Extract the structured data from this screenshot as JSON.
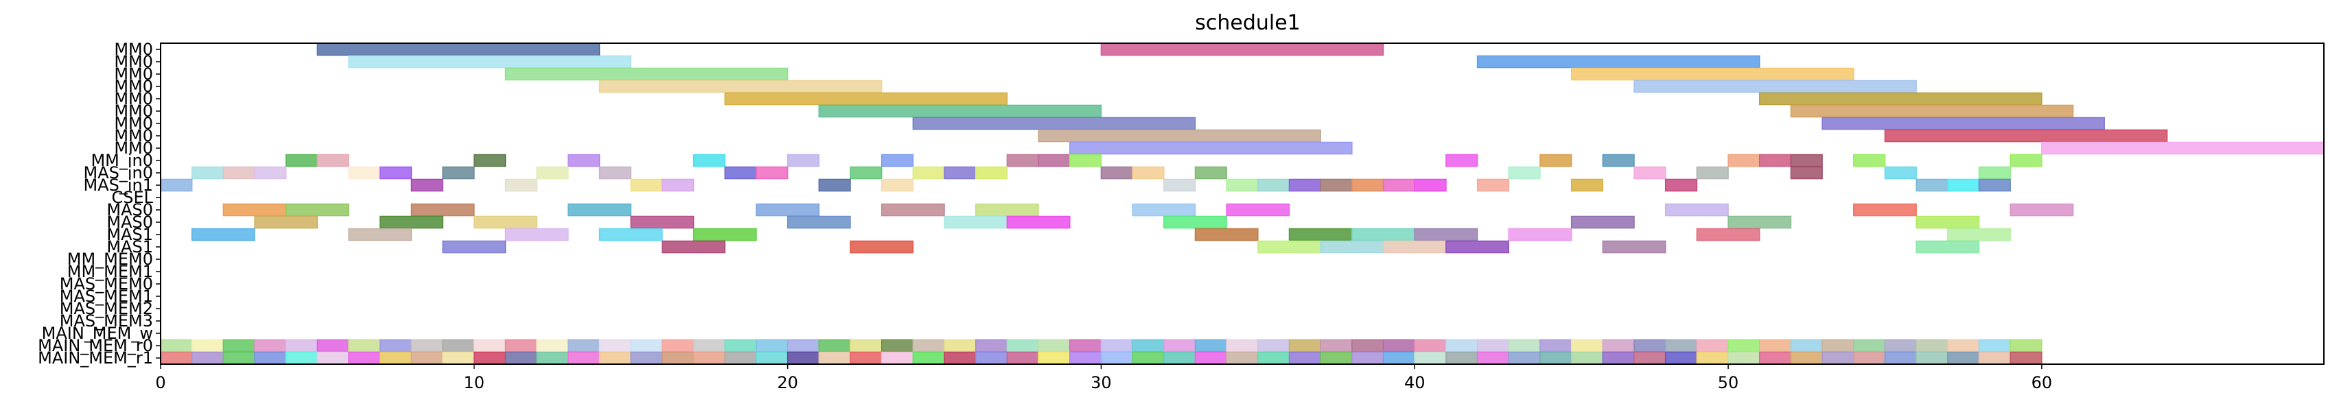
{
  "chart_data": {
    "type": "gantt",
    "title": "schedule1",
    "xlim": [
      0,
      69
    ],
    "x_ticks": [
      0,
      10,
      20,
      30,
      40,
      50,
      60
    ],
    "grid": false,
    "rows": [
      "MM0",
      "MM0",
      "MM0",
      "MM0",
      "MM0",
      "MM0",
      "MM0",
      "MM0",
      "MM0",
      "MM_in0",
      "MAS_in0",
      "MAS_in1",
      "CSEL",
      "MAS0",
      "MAS0",
      "MAS1",
      "MAS1",
      "MM_MEM0",
      "MM_MEM1",
      "MAS_MEM0",
      "MAS_MEM1",
      "MAS_MEM2",
      "MAS_MEM3",
      "MAIN_MEM_w",
      "MAIN_MEM_r0",
      "MAIN_MEM_r1"
    ],
    "tasks": [
      {
        "row": 0,
        "start": 5,
        "end": 14,
        "color": "#5470a8"
      },
      {
        "row": 0,
        "start": 30,
        "end": 39,
        "color": "#d05a92"
      },
      {
        "row": 1,
        "start": 6,
        "end": 15,
        "color": "#a8e4f0"
      },
      {
        "row": 1,
        "start": 42,
        "end": 51,
        "color": "#5b9cea"
      },
      {
        "row": 2,
        "start": 11,
        "end": 20,
        "color": "#90e090"
      },
      {
        "row": 2,
        "start": 45,
        "end": 54,
        "color": "#f5c86a"
      },
      {
        "row": 3,
        "start": 14,
        "end": 23,
        "color": "#ecd49a"
      },
      {
        "row": 3,
        "start": 47,
        "end": 56,
        "color": "#a4c4ec"
      },
      {
        "row": 4,
        "start": 18,
        "end": 27,
        "color": "#d8b040"
      },
      {
        "row": 4,
        "start": 51,
        "end": 60,
        "color": "#b8a038"
      },
      {
        "row": 5,
        "start": 21,
        "end": 30,
        "color": "#60c090"
      },
      {
        "row": 5,
        "start": 52,
        "end": 61,
        "color": "#d4a060"
      },
      {
        "row": 6,
        "start": 24,
        "end": 33,
        "color": "#7880c4"
      },
      {
        "row": 6,
        "start": 53,
        "end": 62,
        "color": "#8478d4"
      },
      {
        "row": 7,
        "start": 28,
        "end": 37,
        "color": "#c4a890"
      },
      {
        "row": 7,
        "start": 55,
        "end": 64,
        "color": "#d04a64"
      },
      {
        "row": 8,
        "start": 29,
        "end": 38,
        "color": "#9898f0"
      },
      {
        "row": 8,
        "start": 60,
        "end": 69,
        "color": "#f4a8ec"
      },
      {
        "row": 9,
        "start": 4,
        "end": 5,
        "color": "#58b858"
      },
      {
        "row": 9,
        "start": 5,
        "end": 6,
        "color": "#e4a8b4"
      },
      {
        "row": 9,
        "start": 10,
        "end": 11,
        "color": "#5a7a48"
      },
      {
        "row": 9,
        "start": 13,
        "end": 14,
        "color": "#b888ec"
      },
      {
        "row": 9,
        "start": 17,
        "end": 18,
        "color": "#48e0ec"
      },
      {
        "row": 9,
        "start": 20,
        "end": 21,
        "color": "#c0b4ec"
      },
      {
        "row": 9,
        "start": 23,
        "end": 24,
        "color": "#7c9cf0"
      },
      {
        "row": 9,
        "start": 27,
        "end": 28,
        "color": "#c07898"
      },
      {
        "row": 9,
        "start": 28,
        "end": 29,
        "color": "#b86898"
      },
      {
        "row": 9,
        "start": 29,
        "end": 30,
        "color": "#98ec60"
      },
      {
        "row": 9,
        "start": 41,
        "end": 42,
        "color": "#ec5cec"
      },
      {
        "row": 9,
        "start": 44,
        "end": 45,
        "color": "#d8a048"
      },
      {
        "row": 9,
        "start": 46,
        "end": 47,
        "color": "#5c98b8"
      },
      {
        "row": 9,
        "start": 50,
        "end": 51,
        "color": "#f0a480"
      },
      {
        "row": 9,
        "start": 51,
        "end": 52,
        "color": "#d05c84"
      },
      {
        "row": 9,
        "start": 52,
        "end": 53,
        "color": "#a05068"
      },
      {
        "row": 9,
        "start": 54,
        "end": 55,
        "color": "#98ec60"
      },
      {
        "row": 9,
        "start": 59,
        "end": 60,
        "color": "#98ec60"
      },
      {
        "row": 10,
        "start": 1,
        "end": 2,
        "color": "#a4e0e4"
      },
      {
        "row": 10,
        "start": 2,
        "end": 3,
        "color": "#e4c0c0"
      },
      {
        "row": 10,
        "start": 3,
        "end": 4,
        "color": "#d8c0ec"
      },
      {
        "row": 10,
        "start": 6,
        "end": 7,
        "color": "#fcecd4"
      },
      {
        "row": 10,
        "start": 7,
        "end": 8,
        "color": "#a060f0"
      },
      {
        "row": 10,
        "start": 9,
        "end": 10,
        "color": "#688898"
      },
      {
        "row": 10,
        "start": 12,
        "end": 13,
        "color": "#e4ecb4"
      },
      {
        "row": 10,
        "start": 14,
        "end": 15,
        "color": "#c8b4c8"
      },
      {
        "row": 10,
        "start": 18,
        "end": 19,
        "color": "#6c68d8"
      },
      {
        "row": 10,
        "start": 19,
        "end": 20,
        "color": "#f068c0"
      },
      {
        "row": 10,
        "start": 22,
        "end": 23,
        "color": "#64c878"
      },
      {
        "row": 10,
        "start": 24,
        "end": 25,
        "color": "#e0ec7c"
      },
      {
        "row": 10,
        "start": 25,
        "end": 26,
        "color": "#8478d4"
      },
      {
        "row": 10,
        "start": 26,
        "end": 27,
        "color": "#d8ec68"
      },
      {
        "row": 10,
        "start": 30,
        "end": 31,
        "color": "#a07898"
      },
      {
        "row": 10,
        "start": 31,
        "end": 32,
        "color": "#f4cc90"
      },
      {
        "row": 10,
        "start": 33,
        "end": 34,
        "color": "#7cb870"
      },
      {
        "row": 10,
        "start": 43,
        "end": 44,
        "color": "#b0f0d0"
      },
      {
        "row": 10,
        "start": 47,
        "end": 48,
        "color": "#f4a8dc"
      },
      {
        "row": 10,
        "start": 49,
        "end": 50,
        "color": "#b0b8b4"
      },
      {
        "row": 10,
        "start": 52,
        "end": 53,
        "color": "#a05068"
      },
      {
        "row": 10,
        "start": 55,
        "end": 56,
        "color": "#68d8ec"
      },
      {
        "row": 10,
        "start": 58,
        "end": 59,
        "color": "#90ec90"
      },
      {
        "row": 11,
        "start": 0,
        "end": 1,
        "color": "#8cb4e4"
      },
      {
        "row": 11,
        "start": 8,
        "end": 9,
        "color": "#a848b0"
      },
      {
        "row": 11,
        "start": 11,
        "end": 12,
        "color": "#e4e0cc"
      },
      {
        "row": 11,
        "start": 15,
        "end": 16,
        "color": "#f0e088"
      },
      {
        "row": 11,
        "start": 16,
        "end": 17,
        "color": "#d8a8ec"
      },
      {
        "row": 11,
        "start": 21,
        "end": 22,
        "color": "#5870a8"
      },
      {
        "row": 11,
        "start": 23,
        "end": 24,
        "color": "#f4dcac"
      },
      {
        "row": 11,
        "start": 32,
        "end": 33,
        "color": "#d0d8dc"
      },
      {
        "row": 11,
        "start": 34,
        "end": 35,
        "color": "#b0f0a0"
      },
      {
        "row": 11,
        "start": 35,
        "end": 36,
        "color": "#98d8d0"
      },
      {
        "row": 11,
        "start": 36,
        "end": 37,
        "color": "#8860d8"
      },
      {
        "row": 11,
        "start": 37,
        "end": 38,
        "color": "#a07870"
      },
      {
        "row": 11,
        "start": 38,
        "end": 39,
        "color": "#e88c58"
      },
      {
        "row": 11,
        "start": 39,
        "end": 40,
        "color": "#ec68c8"
      },
      {
        "row": 11,
        "start": 40,
        "end": 41,
        "color": "#ec48ec"
      },
      {
        "row": 11,
        "start": 42,
        "end": 43,
        "color": "#f4a898"
      },
      {
        "row": 11,
        "start": 45,
        "end": 46,
        "color": "#d8b040"
      },
      {
        "row": 11,
        "start": 48,
        "end": 49,
        "color": "#c84880"
      },
      {
        "row": 11,
        "start": 56,
        "end": 57,
        "color": "#7cb8d8"
      },
      {
        "row": 11,
        "start": 57,
        "end": 58,
        "color": "#48ecf4"
      },
      {
        "row": 11,
        "start": 58,
        "end": 59,
        "color": "#6888c8"
      },
      {
        "row": 13,
        "start": 2,
        "end": 4,
        "color": "#ec9c50"
      },
      {
        "row": 13,
        "start": 4,
        "end": 6,
        "color": "#90c860"
      },
      {
        "row": 13,
        "start": 8,
        "end": 10,
        "color": "#c08060"
      },
      {
        "row": 13,
        "start": 13,
        "end": 15,
        "color": "#58b4cc"
      },
      {
        "row": 13,
        "start": 19,
        "end": 21,
        "color": "#7ca4e0"
      },
      {
        "row": 13,
        "start": 23,
        "end": 25,
        "color": "#c08890"
      },
      {
        "row": 13,
        "start": 26,
        "end": 28,
        "color": "#c4e080"
      },
      {
        "row": 13,
        "start": 31,
        "end": 33,
        "color": "#9cc8f0"
      },
      {
        "row": 13,
        "start": 34,
        "end": 36,
        "color": "#ec60ec"
      },
      {
        "row": 13,
        "start": 48,
        "end": 50,
        "color": "#c4b4ec"
      },
      {
        "row": 13,
        "start": 54,
        "end": 56,
        "color": "#f07060"
      },
      {
        "row": 13,
        "start": 59,
        "end": 61,
        "color": "#d890c8"
      },
      {
        "row": 14,
        "start": 3,
        "end": 5,
        "color": "#d0b060"
      },
      {
        "row": 14,
        "start": 7,
        "end": 9,
        "color": "#508c38"
      },
      {
        "row": 14,
        "start": 10,
        "end": 12,
        "color": "#e4d080"
      },
      {
        "row": 14,
        "start": 15,
        "end": 17,
        "color": "#b8508c"
      },
      {
        "row": 14,
        "start": 20,
        "end": 22,
        "color": "#6890c8"
      },
      {
        "row": 14,
        "start": 25,
        "end": 27,
        "color": "#a8e8e0"
      },
      {
        "row": 14,
        "start": 27,
        "end": 29,
        "color": "#ec4cec"
      },
      {
        "row": 14,
        "start": 32,
        "end": 34,
        "color": "#58ec80"
      },
      {
        "row": 14,
        "start": 45,
        "end": 47,
        "color": "#9070b0"
      },
      {
        "row": 14,
        "start": 50,
        "end": 52,
        "color": "#88c090"
      },
      {
        "row": 14,
        "start": 56,
        "end": 58,
        "color": "#b0ec60"
      },
      {
        "row": 15,
        "start": 1,
        "end": 3,
        "color": "#58b4ec"
      },
      {
        "row": 15,
        "start": 6,
        "end": 8,
        "color": "#c8b4a8"
      },
      {
        "row": 15,
        "start": 11,
        "end": 13,
        "color": "#d8b8f0"
      },
      {
        "row": 15,
        "start": 14,
        "end": 16,
        "color": "#60d8f0"
      },
      {
        "row": 15,
        "start": 17,
        "end": 19,
        "color": "#60d040"
      },
      {
        "row": 15,
        "start": 33,
        "end": 35,
        "color": "#c07840"
      },
      {
        "row": 15,
        "start": 36,
        "end": 38,
        "color": "#509838"
      },
      {
        "row": 15,
        "start": 38,
        "end": 40,
        "color": "#78d8c0"
      },
      {
        "row": 15,
        "start": 40,
        "end": 42,
        "color": "#9880b0"
      },
      {
        "row": 15,
        "start": 43,
        "end": 45,
        "color": "#ec98ec"
      },
      {
        "row": 15,
        "start": 49,
        "end": 51,
        "color": "#e06c80"
      },
      {
        "row": 15,
        "start": 57,
        "end": 59,
        "color": "#b4f0a0"
      },
      {
        "row": 16,
        "start": 9,
        "end": 11,
        "color": "#8080d8"
      },
      {
        "row": 16,
        "start": 16,
        "end": 18,
        "color": "#b04878"
      },
      {
        "row": 16,
        "start": 22,
        "end": 24,
        "color": "#e05848"
      },
      {
        "row": 16,
        "start": 35,
        "end": 37,
        "color": "#c0f080"
      },
      {
        "row": 16,
        "start": 37,
        "end": 39,
        "color": "#a0d8dc"
      },
      {
        "row": 16,
        "start": 39,
        "end": 41,
        "color": "#e8c8b4"
      },
      {
        "row": 16,
        "start": 41,
        "end": 43,
        "color": "#9050c0"
      },
      {
        "row": 16,
        "start": 46,
        "end": 48,
        "color": "#a880a8"
      },
      {
        "row": 16,
        "start": 56,
        "end": 58,
        "color": "#88e8a8"
      }
    ],
    "memory_rows": {
      "row_w": 24,
      "row_r0": 25,
      "start": 0,
      "end": 60,
      "colors_w": [
        "#b0e098",
        "#f4f0b0",
        "#60c860",
        "#e090c8",
        "#d8b8e8",
        "#e060e0",
        "#c8e090",
        "#9898e0",
        "#c8c0c0",
        "#a8a8a8",
        "#f4d8d8",
        "#e8889c",
        "#f4f0c8",
        "#98b0d8",
        "#e8d8ec",
        "#c8e0f4",
        "#f4a098",
        "#c8c8c8",
        "#70dcc0",
        "#7cc4e8",
        "#a0a8e8",
        "#60c060",
        "#e0e088",
        "#6c8c48",
        "#c8b8a8",
        "#e8e088",
        "#a888d0",
        "#98e0c0",
        "#b8e0a8",
        "#d068b8",
        "#c0b8f0",
        "#60c8d8",
        "#e098e0",
        "#60b0e0",
        "#e8d0e0",
        "#c8c0e8",
        "#c8b060",
        "#c890b0",
        "#b07090",
        "#b068a8",
        "#e88cb0",
        "#b8d8f0",
        "#d0c0e8",
        "#b8e0c0",
        "#a898d8",
        "#f0e898",
        "#d0a0c8",
        "#8888c0",
        "#98a8b8",
        "#f0a8b8",
        "#98ec70",
        "#f0b088",
        "#98d0e8",
        "#c8b098",
        "#90d098",
        "#a8a8c8",
        "#b8c8a8",
        "#f0c8a8",
        "#90d8f0",
        "#a8e070"
      ],
      "colors_r0": [
        "#e87878",
        "#a890d0",
        "#60c860",
        "#7890e0",
        "#60f0e0",
        "#e8c8e8",
        "#e860e8",
        "#e8c860",
        "#d8a888",
        "#f0e0a0",
        "#d04060",
        "#7070a8",
        "#70c8a0",
        "#ec70d8",
        "#f0c890",
        "#9898d0",
        "#d09878",
        "#e8a088",
        "#a8a8a8",
        "#68d8d8",
        "#5848a0",
        "#e8c8a8",
        "#e86060",
        "#f4c0e0",
        "#60e060",
        "#c04060",
        "#8888e0",
        "#c86090",
        "#f0e868",
        "#b080f0",
        "#98b8f8",
        "#60d060",
        "#60c8b8",
        "#e860e8",
        "#c8b0a0",
        "#60d8b0",
        "#9078d8",
        "#70c058",
        "#a890d8",
        "#60a8e8",
        "#c0e0d0",
        "#98a8a8",
        "#e870e0",
        "#88a0d0",
        "#70b0b0",
        "#a8d8a0",
        "#9068c8",
        "#c06888",
        "#6058c8",
        "#f0d070",
        "#c0e0a8",
        "#e06890",
        "#d8a868",
        "#a898c8",
        "#d89898",
        "#8098d8",
        "#98c8b8",
        "#7898b0",
        "#e8c0a8",
        "#c05860"
      ]
    }
  }
}
